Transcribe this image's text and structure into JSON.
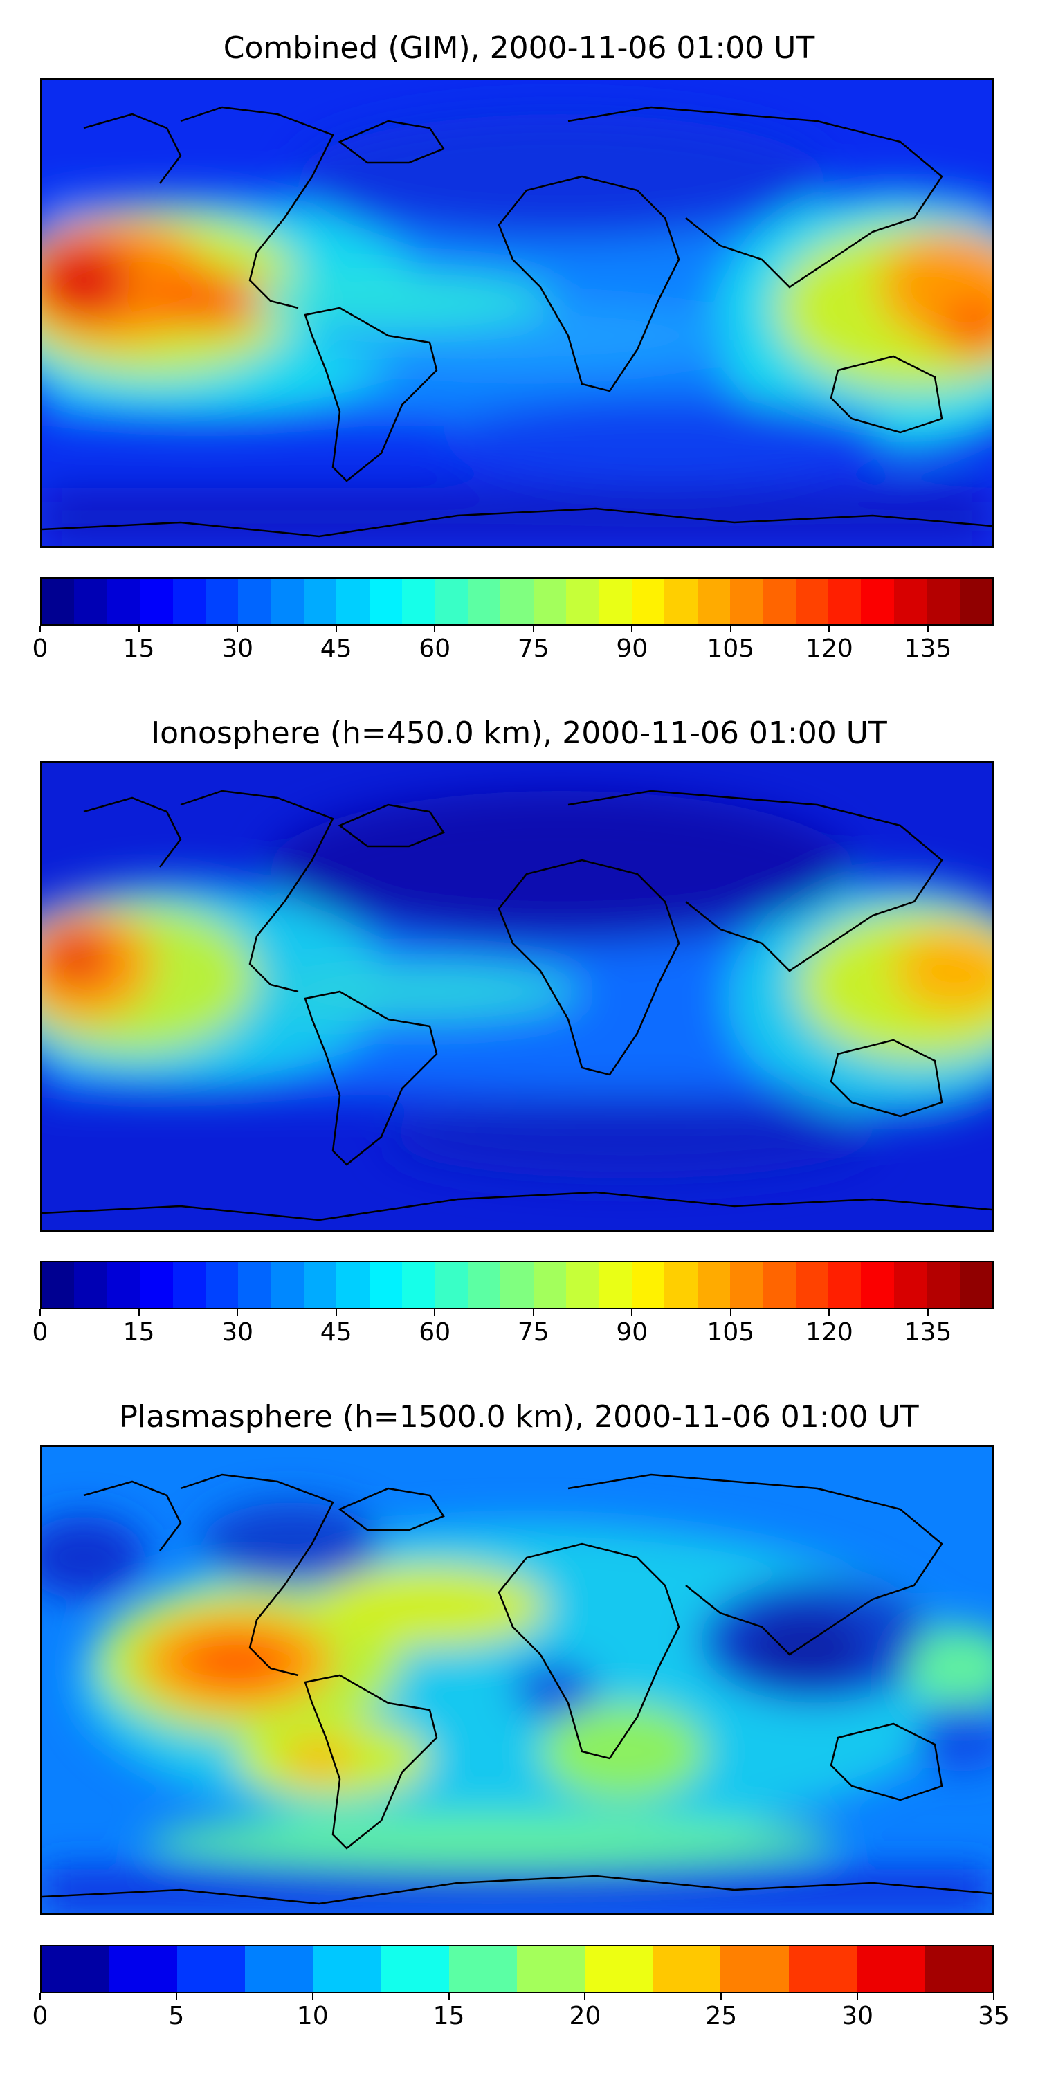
{
  "panels": [
    {
      "title": "Combined (GIM), 2000-11-06 01:00 UT",
      "scale": {
        "min": 0,
        "max": 145,
        "levels": 29,
        "ticks": [
          0,
          15,
          30,
          45,
          60,
          75,
          90,
          105,
          120,
          135
        ]
      }
    },
    {
      "title": "Ionosphere  (h=450.0 km), 2000-11-06 01:00 UT",
      "scale": {
        "min": 0,
        "max": 145,
        "levels": 29,
        "ticks": [
          0,
          15,
          30,
          45,
          60,
          75,
          90,
          105,
          120,
          135
        ]
      }
    },
    {
      "title": "Plasmasphere (h=1500.0 km), 2000-11-06 01:00 UT",
      "scale": {
        "min": 0,
        "max": 35,
        "levels": 14,
        "ticks": [
          0,
          5,
          10,
          15,
          20,
          25,
          30,
          35
        ]
      }
    }
  ],
  "chart_data": [
    {
      "type": "heatmap",
      "title": "Combined (GIM), 2000-11-06 01:00 UT",
      "colormap": "jet",
      "colorbar": {
        "min": 0,
        "max": 145,
        "ticks": [
          0,
          15,
          30,
          45,
          60,
          75,
          90,
          105,
          120,
          135
        ]
      },
      "grid": false
    },
    {
      "type": "heatmap",
      "title": "Ionosphere  (h=450.0 km), 2000-11-06 01:00 UT",
      "colormap": "jet",
      "colorbar": {
        "min": 0,
        "max": 145,
        "ticks": [
          0,
          15,
          30,
          45,
          60,
          75,
          90,
          105,
          120,
          135
        ]
      },
      "grid": false
    },
    {
      "type": "heatmap",
      "title": "Plasmasphere (h=1500.0 km), 2000-11-06 01:00 UT",
      "colormap": "jet",
      "colorbar": {
        "min": 0,
        "max": 35,
        "ticks": [
          0,
          5,
          10,
          15,
          20,
          25,
          30,
          35
        ]
      },
      "grid": false
    }
  ]
}
